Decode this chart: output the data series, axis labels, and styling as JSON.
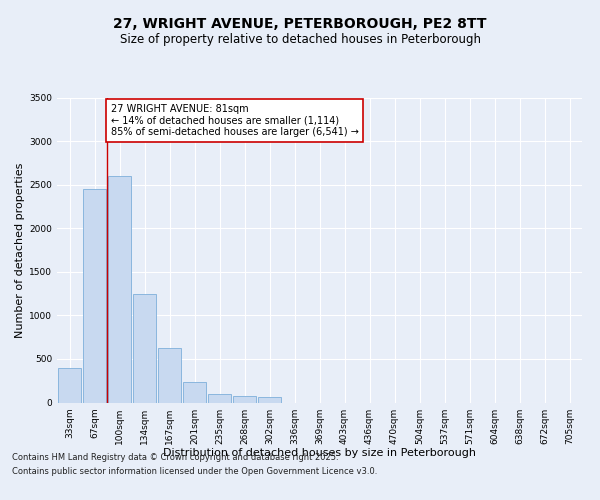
{
  "title_line1": "27, WRIGHT AVENUE, PETERBOROUGH, PE2 8TT",
  "title_line2": "Size of property relative to detached houses in Peterborough",
  "xlabel": "Distribution of detached houses by size in Peterborough",
  "ylabel": "Number of detached properties",
  "categories": [
    "33sqm",
    "67sqm",
    "100sqm",
    "134sqm",
    "167sqm",
    "201sqm",
    "235sqm",
    "268sqm",
    "302sqm",
    "336sqm",
    "369sqm",
    "403sqm",
    "436sqm",
    "470sqm",
    "504sqm",
    "537sqm",
    "571sqm",
    "604sqm",
    "638sqm",
    "672sqm",
    "705sqm"
  ],
  "values": [
    400,
    2450,
    2600,
    1250,
    630,
    240,
    100,
    75,
    60,
    0,
    0,
    0,
    0,
    0,
    0,
    0,
    0,
    0,
    0,
    0,
    0
  ],
  "bar_color": "#c8d9f0",
  "bar_edge_color": "#7eafda",
  "vline_x_index": 1.5,
  "annotation_text": "27 WRIGHT AVENUE: 81sqm\n← 14% of detached houses are smaller (1,114)\n85% of semi-detached houses are larger (6,541) →",
  "annotation_box_color": "#ffffff",
  "annotation_box_edge_color": "#cc0000",
  "vline_color": "#cc0000",
  "ylim": [
    0,
    3500
  ],
  "yticks": [
    0,
    500,
    1000,
    1500,
    2000,
    2500,
    3000,
    3500
  ],
  "grid_color": "#ffffff",
  "background_color": "#e8eef8",
  "plot_background": "#e8eef8",
  "footer_line1": "Contains HM Land Registry data © Crown copyright and database right 2025.",
  "footer_line2": "Contains public sector information licensed under the Open Government Licence v3.0.",
  "title_fontsize": 10,
  "subtitle_fontsize": 8.5,
  "axis_label_fontsize": 8,
  "tick_fontsize": 6.5,
  "annotation_fontsize": 7,
  "footer_fontsize": 6
}
